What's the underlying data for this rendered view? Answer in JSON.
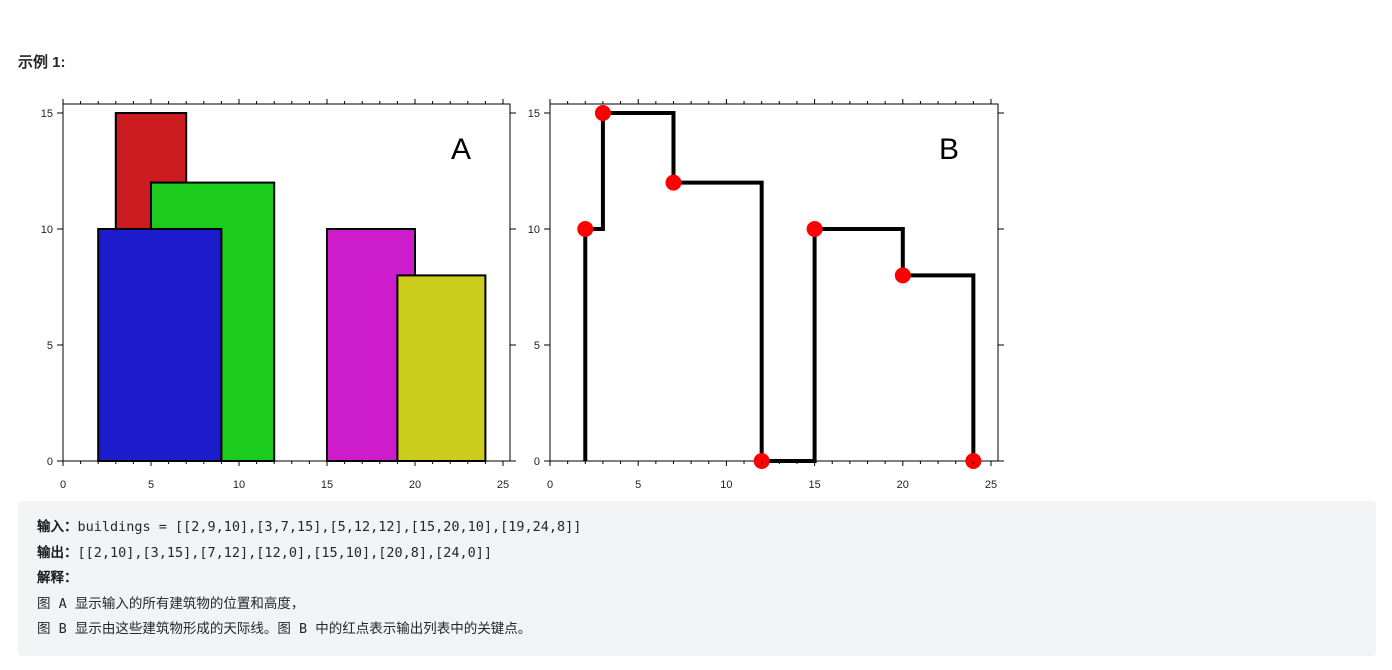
{
  "example": {
    "title": "示例 1:"
  },
  "chart_data": [
    {
      "type": "bar",
      "panel_label": "A",
      "xlim": [
        0,
        25
      ],
      "ylim": [
        0,
        15
      ],
      "x_ticks": [
        "0",
        "5",
        "10",
        "15",
        "20",
        "25"
      ],
      "y_ticks": [
        "0",
        "5",
        "10",
        "15"
      ],
      "buildings": [
        {
          "left": 3,
          "right": 7,
          "height": 15,
          "color": "#cc1c1f"
        },
        {
          "left": 5,
          "right": 12,
          "height": 12,
          "color": "#1ccc1c"
        },
        {
          "left": 2,
          "right": 9,
          "height": 10,
          "color": "#1c1ccc"
        },
        {
          "left": 15,
          "right": 20,
          "height": 10,
          "color": "#cc1ccc"
        },
        {
          "left": 19,
          "right": 24,
          "height": 8,
          "color": "#cccc1c"
        }
      ]
    },
    {
      "type": "line",
      "panel_label": "B",
      "xlim": [
        0,
        25
      ],
      "ylim": [
        0,
        15
      ],
      "x_ticks": [
        "0",
        "5",
        "10",
        "15",
        "20",
        "25"
      ],
      "y_ticks": [
        "0",
        "5",
        "10",
        "15"
      ],
      "line_color": "#000000",
      "point_color": "#ff0000",
      "skyline_path": [
        [
          2,
          0
        ],
        [
          2,
          10
        ],
        [
          3,
          10
        ],
        [
          3,
          15
        ],
        [
          7,
          15
        ],
        [
          7,
          12
        ],
        [
          12,
          12
        ],
        [
          12,
          0
        ],
        [
          15,
          0
        ],
        [
          15,
          10
        ],
        [
          20,
          10
        ],
        [
          20,
          8
        ],
        [
          24,
          8
        ],
        [
          24,
          0
        ]
      ],
      "key_points": [
        [
          2,
          10
        ],
        [
          3,
          15
        ],
        [
          7,
          12
        ],
        [
          12,
          0
        ],
        [
          15,
          10
        ],
        [
          20,
          8
        ],
        [
          24,
          0
        ]
      ]
    }
  ],
  "explanation": {
    "input_label": "输入：",
    "input_value": "buildings = [[2,9,10],[3,7,15],[5,12,12],[15,20,10],[19,24,8]]",
    "output_label": "输出：",
    "output_value": "[[2,10],[3,15],[7,12],[12,0],[15,10],[20,8],[24,0]]",
    "explain_label": "解释：",
    "line1": "图 A 显示输入的所有建筑物的位置和高度，",
    "line2": "图 B 显示由这些建筑物形成的天际线。图 B 中的红点表示输出列表中的关键点。"
  }
}
